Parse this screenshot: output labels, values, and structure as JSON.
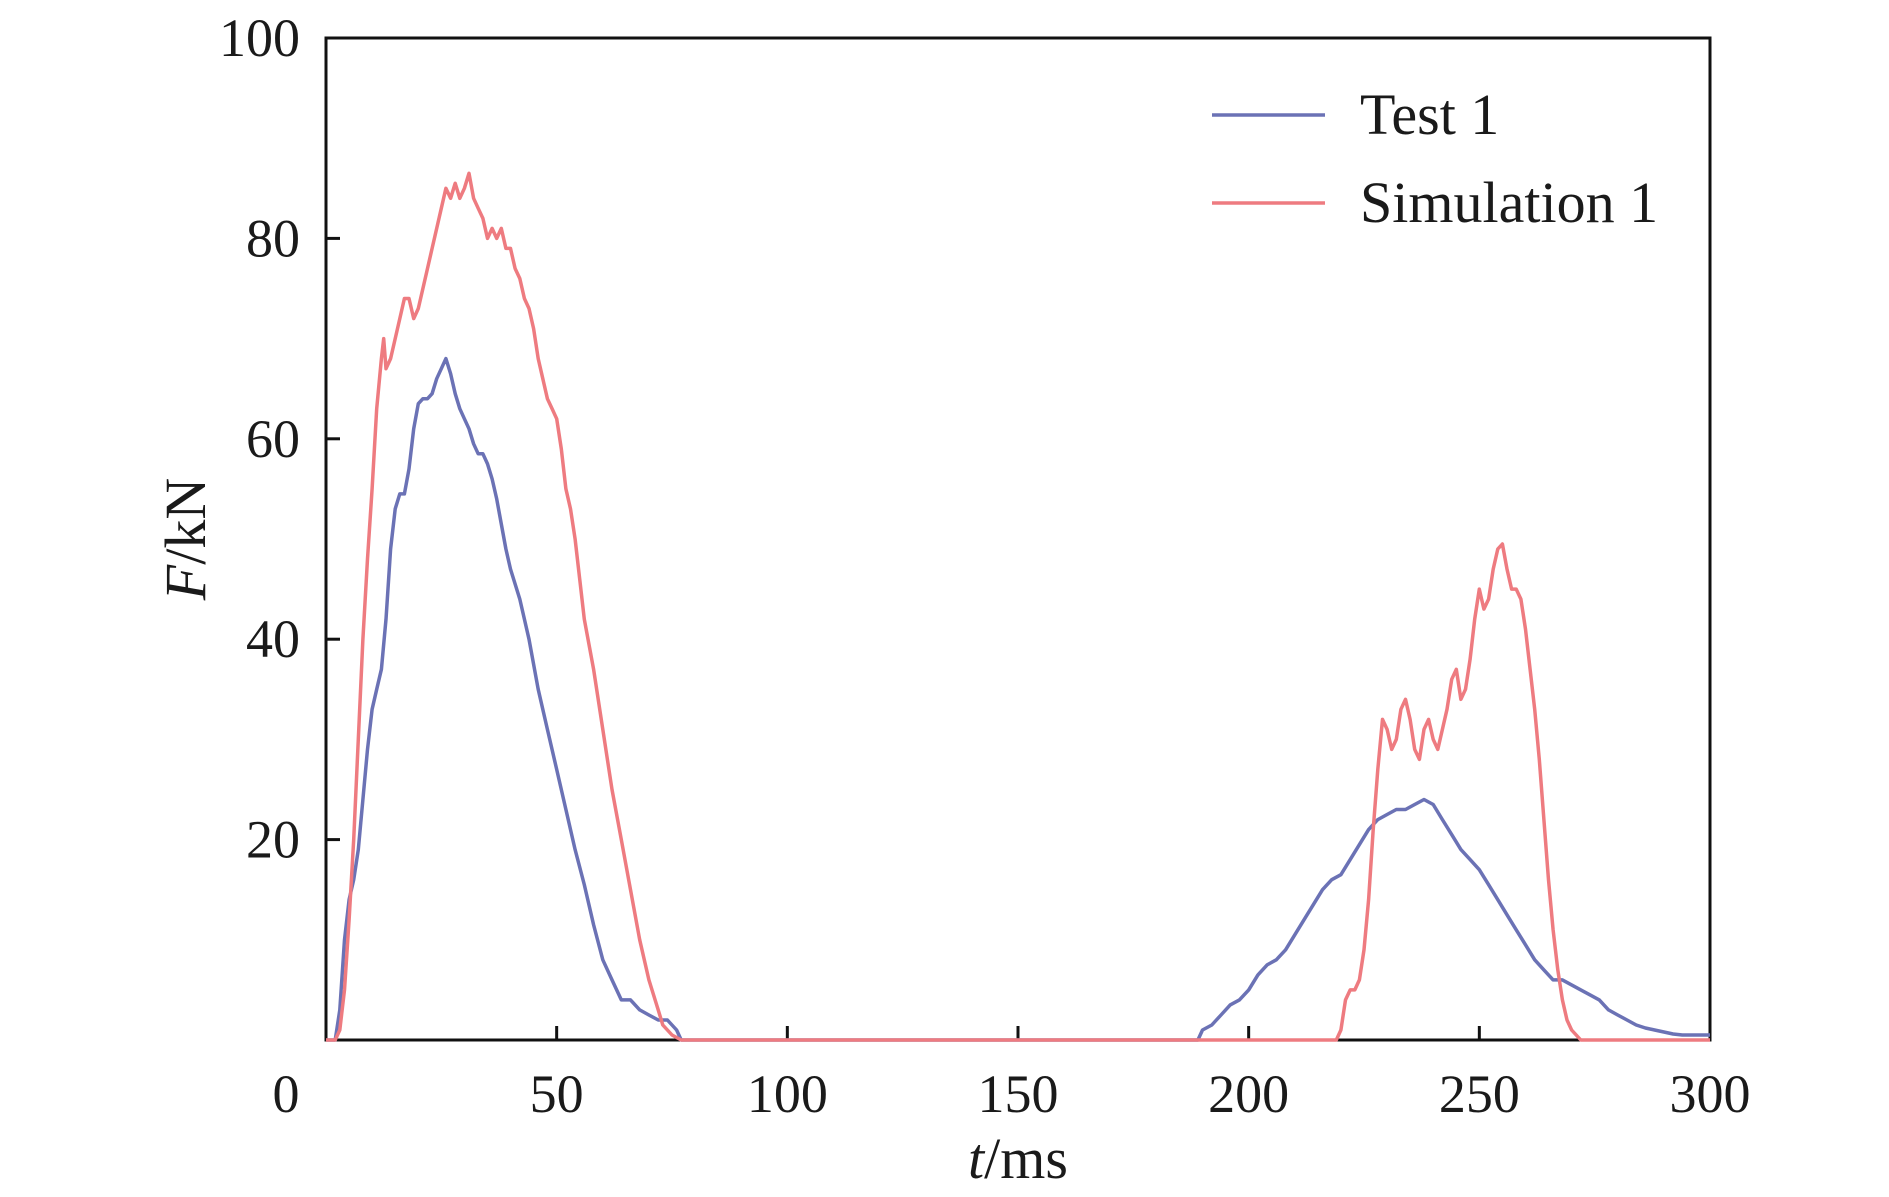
{
  "chart_data": {
    "type": "line",
    "title": "",
    "xlabel_italic": "t",
    "xlabel_rest": "/ms",
    "ylabel_italic": "F",
    "ylabel_rest": "/kN",
    "xlim": [
      0,
      300
    ],
    "ylim": [
      0,
      100
    ],
    "xticks": [
      0,
      50,
      100,
      150,
      200,
      250,
      300
    ],
    "yticks": [
      20,
      40,
      60,
      80,
      100
    ],
    "grid": false,
    "legend_position": "top-right",
    "series": [
      {
        "name": "Test 1",
        "color": "#6b72b5",
        "points": [
          [
            0,
            0
          ],
          [
            2,
            0
          ],
          [
            3,
            3
          ],
          [
            4,
            10
          ],
          [
            5,
            14
          ],
          [
            6,
            16
          ],
          [
            7,
            19
          ],
          [
            8,
            24
          ],
          [
            9,
            29
          ],
          [
            10,
            33
          ],
          [
            11,
            35
          ],
          [
            12,
            37
          ],
          [
            13,
            42
          ],
          [
            14,
            49
          ],
          [
            15,
            53
          ],
          [
            16,
            54.5
          ],
          [
            17,
            54.5
          ],
          [
            18,
            57
          ],
          [
            19,
            61
          ],
          [
            20,
            63.5
          ],
          [
            21,
            64
          ],
          [
            22,
            64
          ],
          [
            23,
            64.5
          ],
          [
            24,
            66
          ],
          [
            25,
            67
          ],
          [
            26,
            68
          ],
          [
            27,
            66.5
          ],
          [
            28,
            64.5
          ],
          [
            29,
            63
          ],
          [
            30,
            62
          ],
          [
            31,
            61
          ],
          [
            32,
            59.5
          ],
          [
            33,
            58.5
          ],
          [
            34,
            58.5
          ],
          [
            35,
            57.5
          ],
          [
            36,
            56
          ],
          [
            37,
            54
          ],
          [
            38,
            51.5
          ],
          [
            39,
            49
          ],
          [
            40,
            47
          ],
          [
            42,
            44
          ],
          [
            44,
            40
          ],
          [
            46,
            35
          ],
          [
            48,
            31
          ],
          [
            50,
            27
          ],
          [
            52,
            23
          ],
          [
            54,
            19
          ],
          [
            56,
            15.5
          ],
          [
            58,
            11.5
          ],
          [
            60,
            8
          ],
          [
            62,
            6
          ],
          [
            64,
            4
          ],
          [
            66,
            4
          ],
          [
            68,
            3
          ],
          [
            70,
            2.5
          ],
          [
            72,
            2
          ],
          [
            74,
            2
          ],
          [
            76,
            1
          ],
          [
            77,
            0
          ],
          [
            80,
            0
          ],
          [
            100,
            0
          ],
          [
            150,
            0
          ],
          [
            189,
            0
          ],
          [
            190,
            1
          ],
          [
            192,
            1.5
          ],
          [
            194,
            2.5
          ],
          [
            196,
            3.5
          ],
          [
            198,
            4
          ],
          [
            200,
            5
          ],
          [
            202,
            6.5
          ],
          [
            204,
            7.5
          ],
          [
            206,
            8
          ],
          [
            208,
            9
          ],
          [
            210,
            10.5
          ],
          [
            212,
            12
          ],
          [
            214,
            13.5
          ],
          [
            216,
            15
          ],
          [
            218,
            16
          ],
          [
            220,
            16.5
          ],
          [
            222,
            18
          ],
          [
            224,
            19.5
          ],
          [
            226,
            21
          ],
          [
            228,
            22
          ],
          [
            230,
            22.5
          ],
          [
            232,
            23
          ],
          [
            234,
            23
          ],
          [
            236,
            23.5
          ],
          [
            238,
            24
          ],
          [
            240,
            23.5
          ],
          [
            242,
            22
          ],
          [
            244,
            20.5
          ],
          [
            246,
            19
          ],
          [
            248,
            18
          ],
          [
            250,
            17
          ],
          [
            252,
            15.5
          ],
          [
            254,
            14
          ],
          [
            256,
            12.5
          ],
          [
            258,
            11
          ],
          [
            260,
            9.5
          ],
          [
            262,
            8
          ],
          [
            264,
            7
          ],
          [
            266,
            6
          ],
          [
            268,
            6
          ],
          [
            270,
            5.5
          ],
          [
            272,
            5
          ],
          [
            274,
            4.5
          ],
          [
            276,
            4
          ],
          [
            278,
            3
          ],
          [
            280,
            2.5
          ],
          [
            282,
            2
          ],
          [
            284,
            1.5
          ],
          [
            286,
            1.2
          ],
          [
            288,
            1
          ],
          [
            290,
            0.8
          ],
          [
            292,
            0.6
          ],
          [
            294,
            0.5
          ],
          [
            296,
            0.5
          ],
          [
            298,
            0.5
          ],
          [
            300,
            0.5
          ]
        ]
      },
      {
        "name": "Simulation 1",
        "color": "#ee7b80",
        "points": [
          [
            0,
            0
          ],
          [
            2,
            0
          ],
          [
            3,
            1
          ],
          [
            4,
            5
          ],
          [
            5,
            12
          ],
          [
            6,
            20
          ],
          [
            7,
            30
          ],
          [
            8,
            40
          ],
          [
            9,
            48
          ],
          [
            10,
            55
          ],
          [
            11,
            63
          ],
          [
            12,
            68
          ],
          [
            12.5,
            70
          ],
          [
            13,
            67
          ],
          [
            14,
            68
          ],
          [
            15,
            70
          ],
          [
            16,
            72
          ],
          [
            17,
            74
          ],
          [
            18,
            74
          ],
          [
            19,
            72
          ],
          [
            20,
            73
          ],
          [
            21,
            75
          ],
          [
            22,
            77
          ],
          [
            23,
            79
          ],
          [
            24,
            81
          ],
          [
            25,
            83
          ],
          [
            26,
            85
          ],
          [
            27,
            84
          ],
          [
            28,
            85.5
          ],
          [
            29,
            84
          ],
          [
            30,
            85
          ],
          [
            31,
            86.5
          ],
          [
            32,
            84
          ],
          [
            33,
            83
          ],
          [
            34,
            82
          ],
          [
            35,
            80
          ],
          [
            36,
            81
          ],
          [
            37,
            80
          ],
          [
            38,
            81
          ],
          [
            39,
            79
          ],
          [
            40,
            79
          ],
          [
            41,
            77
          ],
          [
            42,
            76
          ],
          [
            43,
            74
          ],
          [
            44,
            73
          ],
          [
            45,
            71
          ],
          [
            46,
            68
          ],
          [
            47,
            66
          ],
          [
            48,
            64
          ],
          [
            49,
            63
          ],
          [
            50,
            62
          ],
          [
            51,
            59
          ],
          [
            52,
            55
          ],
          [
            53,
            53
          ],
          [
            54,
            50
          ],
          [
            55,
            46
          ],
          [
            56,
            42
          ],
          [
            58,
            37
          ],
          [
            60,
            31
          ],
          [
            62,
            25
          ],
          [
            64,
            20
          ],
          [
            66,
            15
          ],
          [
            68,
            10
          ],
          [
            70,
            6
          ],
          [
            72,
            3
          ],
          [
            73,
            1.5
          ],
          [
            75,
            0.5
          ],
          [
            77,
            0
          ],
          [
            100,
            0
          ],
          [
            150,
            0
          ],
          [
            200,
            0
          ],
          [
            219,
            0
          ],
          [
            220,
            1
          ],
          [
            221,
            4
          ],
          [
            222,
            5
          ],
          [
            223,
            5
          ],
          [
            224,
            6
          ],
          [
            225,
            9
          ],
          [
            226,
            14
          ],
          [
            227,
            21
          ],
          [
            228,
            27
          ],
          [
            229,
            32
          ],
          [
            230,
            31
          ],
          [
            231,
            29
          ],
          [
            232,
            30
          ],
          [
            233,
            33
          ],
          [
            234,
            34
          ],
          [
            235,
            32
          ],
          [
            236,
            29
          ],
          [
            237,
            28
          ],
          [
            238,
            31
          ],
          [
            239,
            32
          ],
          [
            240,
            30
          ],
          [
            241,
            29
          ],
          [
            242,
            31
          ],
          [
            243,
            33
          ],
          [
            244,
            36
          ],
          [
            245,
            37
          ],
          [
            246,
            34
          ],
          [
            247,
            35
          ],
          [
            248,
            38
          ],
          [
            249,
            42
          ],
          [
            250,
            45
          ],
          [
            251,
            43
          ],
          [
            252,
            44
          ],
          [
            253,
            47
          ],
          [
            254,
            49
          ],
          [
            255,
            49.5
          ],
          [
            256,
            47
          ],
          [
            257,
            45
          ],
          [
            258,
            45
          ],
          [
            259,
            44
          ],
          [
            260,
            41
          ],
          [
            261,
            37
          ],
          [
            262,
            33
          ],
          [
            263,
            28
          ],
          [
            264,
            22
          ],
          [
            265,
            16
          ],
          [
            266,
            11
          ],
          [
            267,
            7
          ],
          [
            268,
            4
          ],
          [
            269,
            2
          ],
          [
            270,
            1
          ],
          [
            272,
            0
          ],
          [
            280,
            0
          ],
          [
            290,
            0
          ],
          [
            300,
            0
          ]
        ]
      }
    ]
  }
}
